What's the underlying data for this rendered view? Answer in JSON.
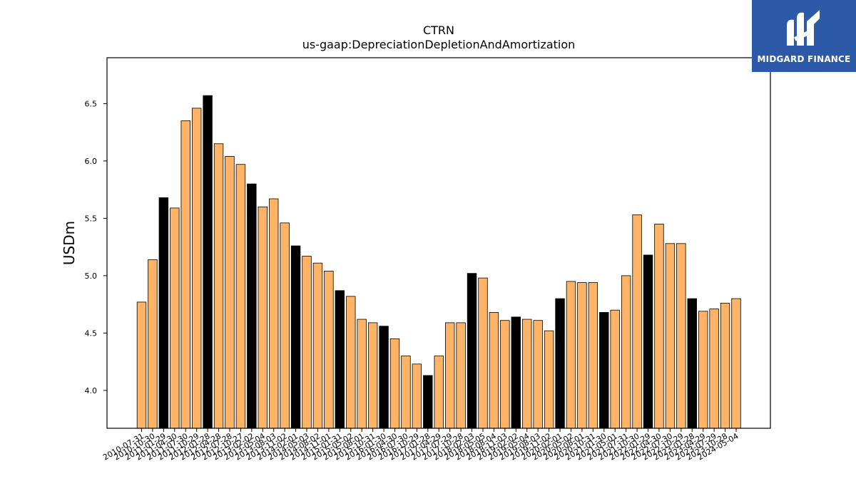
{
  "brand": {
    "name": "MIDGARD FINANCE",
    "bg_color": "#2d5aa8"
  },
  "chart_data": {
    "type": "bar",
    "title": "CTRN",
    "subtitle": "us-gaap:DepreciationDepletionAndAmortization",
    "xlabel": "",
    "ylabel": "USDm",
    "ylim": [
      3.67,
      6.9
    ],
    "yticks": [
      4.0,
      4.5,
      5.0,
      5.5,
      6.0,
      6.5
    ],
    "grid": false,
    "colors": {
      "default": "#ffb366",
      "highlight": "#000000",
      "edge": "#000000"
    },
    "categories": [
      "2010-07-31",
      "2010-10-30",
      "2011-01-29",
      "2011-04-30",
      "2011-07-30",
      "2011-10-29",
      "2012-01-28",
      "2012-04-28",
      "2012-07-28",
      "2012-10-27",
      "2013-02-02",
      "2013-05-04",
      "2013-08-03",
      "2013-11-02",
      "2014-02-01",
      "2014-05-03",
      "2014-08-02",
      "2014-11-01",
      "2015-01-31",
      "2015-05-02",
      "2015-08-01",
      "2015-10-31",
      "2016-01-30",
      "2016-04-30",
      "2016-07-30",
      "2016-10-29",
      "2017-01-28",
      "2017-04-29",
      "2017-07-29",
      "2017-10-28",
      "2018-02-03",
      "2018-05-05",
      "2018-08-04",
      "2018-11-03",
      "2019-02-02",
      "2019-05-04",
      "2019-08-03",
      "2019-11-02",
      "2020-02-01",
      "2020-05-02",
      "2020-08-01",
      "2020-10-31",
      "2021-01-30",
      "2021-05-01",
      "2021-07-31",
      "2021-10-30",
      "2022-01-29",
      "2022-04-30",
      "2022-07-30",
      "2022-10-29",
      "2023-01-28",
      "2023-04-29",
      "2023-07-29",
      "2023-10-28",
      "2024-05-04"
    ],
    "values": [
      4.77,
      5.14,
      5.68,
      5.59,
      6.35,
      6.46,
      6.57,
      6.15,
      6.04,
      5.97,
      5.8,
      5.6,
      5.67,
      5.46,
      5.26,
      5.17,
      5.11,
      5.04,
      4.87,
      4.82,
      4.62,
      4.59,
      4.56,
      4.45,
      4.3,
      4.23,
      4.13,
      4.3,
      4.59,
      4.59,
      5.02,
      4.98,
      4.68,
      4.61,
      4.64,
      4.62,
      4.61,
      4.52,
      4.8,
      4.95,
      4.94,
      4.94,
      4.68,
      4.7,
      5.0,
      5.53,
      5.18,
      5.45,
      5.28,
      5.28,
      4.8,
      4.69,
      4.71,
      4.76,
      4.8
    ],
    "highlight": [
      false,
      false,
      true,
      false,
      false,
      false,
      true,
      false,
      false,
      false,
      true,
      false,
      false,
      false,
      true,
      false,
      false,
      false,
      true,
      false,
      false,
      false,
      true,
      false,
      false,
      false,
      true,
      false,
      false,
      false,
      true,
      false,
      false,
      false,
      true,
      false,
      false,
      false,
      true,
      false,
      false,
      false,
      true,
      false,
      false,
      false,
      true,
      false,
      false,
      false,
      true,
      false,
      false,
      false,
      false
    ]
  }
}
